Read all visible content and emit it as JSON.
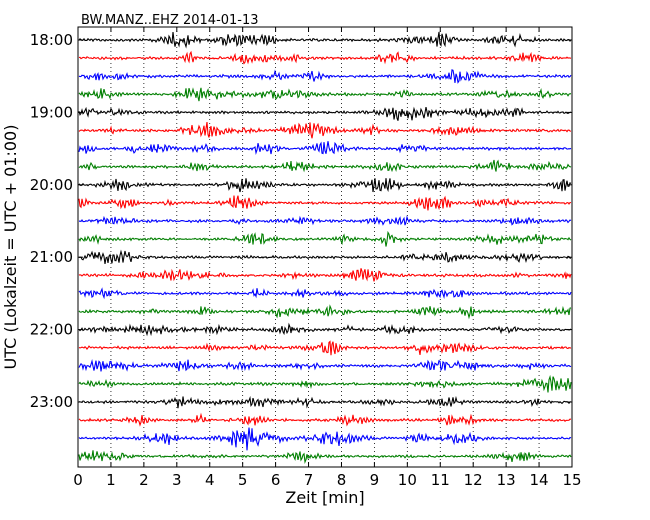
{
  "chart_data": {
    "type": "line",
    "title": "BW.MANZ..EHZ 2014-01-13",
    "xlabel": "Zeit  [min]",
    "ylabel": "UTC (Lokalzeit = UTC + 01:00)",
    "xlim": [
      0,
      15
    ],
    "x_ticks": [
      0,
      1,
      2,
      3,
      4,
      5,
      6,
      7,
      8,
      9,
      10,
      11,
      12,
      13,
      14,
      15
    ],
    "x_tick_labels": [
      "0",
      "1",
      "2",
      "3",
      "4",
      "5",
      "6",
      "7",
      "8",
      "9",
      "10",
      "11",
      "12",
      "13",
      "14",
      "15"
    ],
    "y_tick_labels": [
      "18:00",
      "19:00",
      "20:00",
      "21:00",
      "22:00",
      "23:00"
    ],
    "grid": "vertical dotted",
    "colors": [
      "#000000",
      "#ff0000",
      "#0000ff",
      "#007f00"
    ],
    "rows_per_hour": 4,
    "traces": [
      "18:00",
      "18:15",
      "18:30",
      "18:45",
      "19:00",
      "19:15",
      "19:30",
      "19:45",
      "20:00",
      "20:15",
      "20:30",
      "20:45",
      "21:00",
      "21:15",
      "21:30",
      "21:45",
      "22:00",
      "22:15",
      "22:30",
      "22:45",
      "23:00",
      "23:15",
      "23:30",
      "23:45"
    ]
  }
}
